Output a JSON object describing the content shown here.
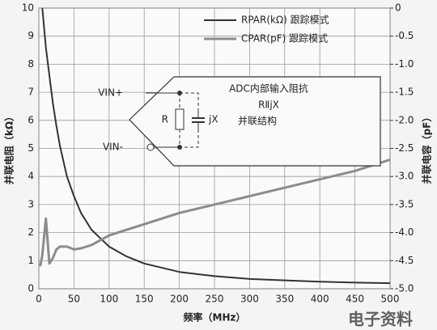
{
  "chart_data": {
    "type": "line",
    "x_label": "频率（MHz）",
    "y_label": "并联电阻（kΩ）",
    "y2_label": "并联电容（pF）",
    "x": [
      2,
      5,
      10,
      15,
      20,
      25,
      30,
      40,
      50,
      60,
      75,
      100,
      125,
      150,
      200,
      250,
      300,
      350,
      400,
      450,
      500
    ],
    "series": [
      {
        "name": "RPAR(kΩ) 跟踪模式",
        "color": "#333333",
        "values": [
          null,
          10,
          8.6,
          7.6,
          6.6,
          5.8,
          5.1,
          4.0,
          3.3,
          2.7,
          2.1,
          1.5,
          1.15,
          0.9,
          0.6,
          0.45,
          0.35,
          0.3,
          0.25,
          0.22,
          0.2
        ]
      },
      {
        "name": "CPAR(pF) 跟踪模式",
        "color": "#8c8c8c",
        "axis": "y2",
        "values": [
          -4.6,
          -4.4,
          -3.75,
          -4.55,
          -4.45,
          -4.3,
          -4.25,
          -4.25,
          -4.3,
          -4.28,
          -4.22,
          -4.05,
          -3.95,
          -3.85,
          -3.65,
          -3.5,
          -3.35,
          -3.2,
          -3.05,
          -2.9,
          -2.7
        ]
      }
    ],
    "xlim": [
      0,
      500
    ],
    "xticks": [
      0,
      50,
      100,
      150,
      200,
      250,
      300,
      350,
      400,
      450,
      500
    ],
    "ylim": [
      0,
      10
    ],
    "yticks": [
      0,
      1,
      2,
      3,
      4,
      5,
      6,
      7,
      8,
      9,
      10
    ],
    "y2lim": [
      -5,
      0
    ],
    "y2ticks": [
      0,
      -0.5,
      {
        "value": -1,
        "label": "-1.0"
      },
      -1.5,
      {
        "value": -2,
        "label": "-2.0"
      },
      -2.5,
      {
        "value": -3,
        "label": "-3.0"
      },
      -3.5,
      {
        "value": -4,
        "label": "-4.0"
      },
      -4.5,
      {
        "value": -5,
        "label": "-5.0"
      }
    ],
    "grid": true,
    "annotations": [
      "VIN+",
      "VIN-",
      "R",
      "jX",
      "ADC内部输入阻抗",
      "RⅡjX",
      "并联结构",
      "电子资料"
    ]
  }
}
